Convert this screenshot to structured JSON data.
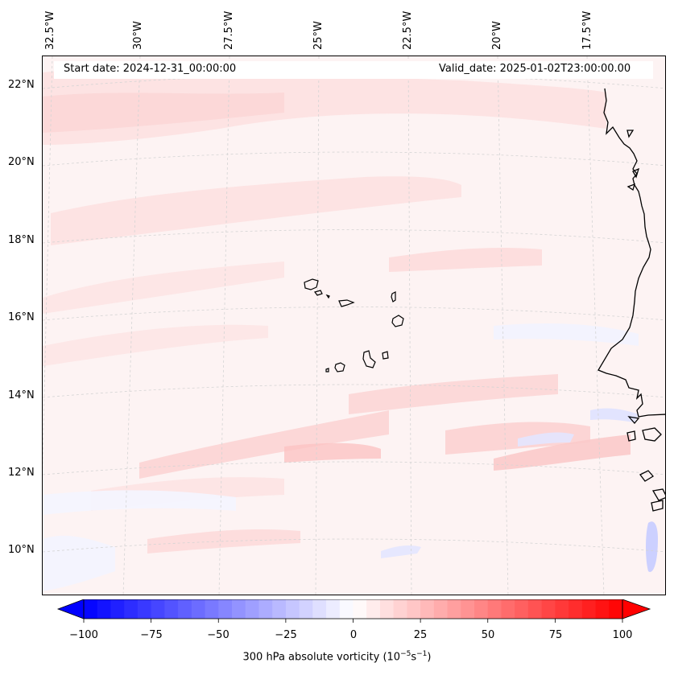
{
  "map": {
    "start_date": "Start date: 2024-12-31_00:00:00",
    "valid_date": "Valid_date: 2025-01-02T23:00:00.00",
    "lon_labels": [
      "32.5°W",
      "30°W",
      "27.5°W",
      "25°W",
      "22.5°W",
      "20°W",
      "17.5°W"
    ],
    "lat_labels": [
      "22°N",
      "20°N",
      "18°N",
      "16°N",
      "14°N",
      "12°N",
      "10°N"
    ],
    "colormap": "bwr",
    "land_outline_color": "#000000",
    "gridlines": "dashed light grey"
  },
  "colorbar": {
    "ticks": [
      "−100",
      "−75",
      "−50",
      "−25",
      "0",
      "25",
      "50",
      "75",
      "100"
    ],
    "range": [
      -100,
      100
    ],
    "step": 5,
    "extend": "both",
    "label_prefix": "300 hPa absolute vorticity (10",
    "label_exp1": "−5",
    "label_mid": "s",
    "label_exp2": "−1",
    "label_suffix": ")"
  }
}
